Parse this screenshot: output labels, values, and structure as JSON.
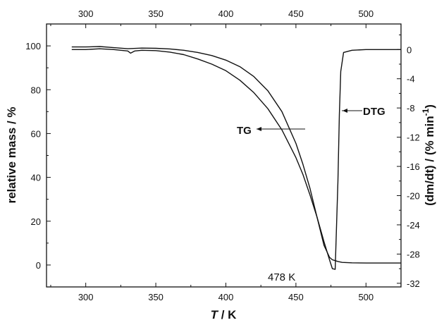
{
  "chart_data": {
    "type": "line",
    "title": "",
    "xlabel_italic": "T",
    "xlabel_rest": " / K",
    "ylabel_left": "relative mass / %",
    "ylabel_right_main": "(dm/dt) / (% min",
    "ylabel_right_sup": "-1",
    "ylabel_right_close": ")",
    "xlim": [
      272,
      525
    ],
    "ylim_left": [
      -10,
      110
    ],
    "ylim_right": [
      -32.5,
      3.5
    ],
    "x_ticks": [
      300,
      350,
      400,
      450,
      500
    ],
    "x_tick_labels": [
      "300",
      "350",
      "400",
      "450",
      "500"
    ],
    "y_left_ticks": [
      0,
      20,
      40,
      60,
      80,
      100
    ],
    "y_left_tick_labels": [
      "0",
      "20",
      "40",
      "60",
      "80",
      "100"
    ],
    "y_right_ticks": [
      0,
      -4,
      -8,
      -12,
      -16,
      -20,
      -24,
      -28,
      -32
    ],
    "y_right_tick_labels": [
      "0",
      "-4",
      "-8",
      "-12",
      "-16",
      "-20",
      "-24",
      "-28",
      "-32"
    ],
    "grid": false,
    "series": [
      {
        "name": "TG",
        "axis": "left",
        "x": [
          290,
          300,
          310,
          320,
          330,
          340,
          350,
          360,
          370,
          380,
          390,
          400,
          410,
          420,
          430,
          440,
          450,
          455,
          460,
          465,
          470,
          474,
          476,
          477,
          478,
          480,
          483,
          490,
          500,
          510,
          525
        ],
        "y": [
          99.5,
          99.5,
          99.7,
          99.2,
          98.7,
          99.0,
          98.9,
          98.6,
          98.0,
          97.0,
          95.6,
          93.5,
          90.5,
          86.0,
          79.5,
          70.0,
          55.5,
          46.0,
          35.0,
          22.0,
          9.0,
          3.5,
          2.4,
          2.2,
          2.0,
          1.6,
          1.2,
          1.0,
          0.9,
          0.9,
          0.9
        ]
      },
      {
        "name": "DTG",
        "axis": "right",
        "x": [
          290,
          300,
          310,
          320,
          330,
          332,
          335,
          340,
          350,
          360,
          370,
          380,
          390,
          400,
          410,
          420,
          430,
          440,
          450,
          455,
          460,
          465,
          470,
          474,
          476,
          478,
          480,
          481,
          482,
          484,
          490,
          500,
          510,
          525
        ],
        "y": [
          0.0,
          0.0,
          0.1,
          0.0,
          -0.2,
          -0.5,
          -0.2,
          -0.1,
          -0.15,
          -0.35,
          -0.7,
          -1.3,
          -2.0,
          -2.9,
          -4.2,
          -5.9,
          -8.1,
          -11.0,
          -14.8,
          -17.1,
          -19.9,
          -22.9,
          -26.3,
          -28.8,
          -30.0,
          -30.1,
          -18.0,
          -9.0,
          -3.0,
          -0.4,
          -0.1,
          0.0,
          0.0,
          0.0
        ]
      }
    ],
    "annotations": [
      {
        "text": "TG",
        "points_to": "TG"
      },
      {
        "text": "DTG",
        "points_to": "DTG"
      },
      {
        "text": "478 K"
      }
    ]
  }
}
